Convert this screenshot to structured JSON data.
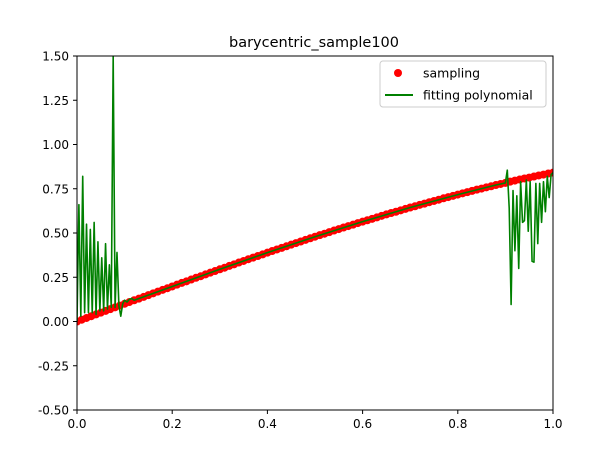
{
  "chart_data": {
    "type": "line",
    "title": "barycentric_sample100",
    "xlabel": "",
    "ylabel": "",
    "xlim": [
      0.0,
      1.0
    ],
    "ylim": [
      -0.5,
      1.5
    ],
    "x_ticks": [
      "0.0",
      "0.2",
      "0.4",
      "0.6",
      "0.8",
      "1.0"
    ],
    "y_ticks": [
      "-0.50",
      "-0.25",
      "0.00",
      "0.25",
      "0.50",
      "0.75",
      "1.00",
      "1.25",
      "1.50"
    ],
    "grid": false,
    "legend": {
      "placement": "top-right",
      "entries": [
        "sampling",
        "fitting polynomial"
      ]
    },
    "series": [
      {
        "name": "sampling",
        "style": "scatter",
        "color": "#ff0000",
        "x": [
          0.0,
          0.01,
          0.02,
          0.03,
          0.04,
          0.05,
          0.06,
          0.07,
          0.08,
          0.09,
          0.1,
          0.11,
          0.12,
          0.13,
          0.14,
          0.15,
          0.16,
          0.17,
          0.18,
          0.19,
          0.2,
          0.21,
          0.22,
          0.23,
          0.24,
          0.25,
          0.26,
          0.27,
          0.28,
          0.29,
          0.3,
          0.31,
          0.32,
          0.33,
          0.34,
          0.35,
          0.36,
          0.37,
          0.38,
          0.39,
          0.4,
          0.41,
          0.42,
          0.43,
          0.44,
          0.45,
          0.46,
          0.47,
          0.48,
          0.49,
          0.5,
          0.51,
          0.52,
          0.53,
          0.54,
          0.55,
          0.56,
          0.57,
          0.58,
          0.59,
          0.6,
          0.61,
          0.62,
          0.63,
          0.64,
          0.65,
          0.66,
          0.67,
          0.68,
          0.69,
          0.7,
          0.71,
          0.72,
          0.73,
          0.74,
          0.75,
          0.76,
          0.77,
          0.78,
          0.79,
          0.8,
          0.81,
          0.82,
          0.83,
          0.84,
          0.85,
          0.86,
          0.87,
          0.88,
          0.89,
          0.9,
          0.91,
          0.92,
          0.93,
          0.94,
          0.95,
          0.96,
          0.97,
          0.98,
          0.99,
          1.0
        ],
        "y": [
          0.0,
          0.01,
          0.02,
          0.03,
          0.04,
          0.05,
          0.06,
          0.07,
          0.08,
          0.09,
          0.1,
          0.11,
          0.12,
          0.129,
          0.139,
          0.149,
          0.159,
          0.169,
          0.179,
          0.188,
          0.198,
          0.208,
          0.218,
          0.227,
          0.237,
          0.247,
          0.256,
          0.266,
          0.276,
          0.285,
          0.295,
          0.304,
          0.314,
          0.323,
          0.333,
          0.342,
          0.352,
          0.361,
          0.37,
          0.379,
          0.389,
          0.398,
          0.407,
          0.416,
          0.425,
          0.434,
          0.443,
          0.452,
          0.461,
          0.47,
          0.479,
          0.488,
          0.496,
          0.505,
          0.514,
          0.522,
          0.531,
          0.539,
          0.547,
          0.556,
          0.564,
          0.572,
          0.58,
          0.588,
          0.597,
          0.605,
          0.613,
          0.62,
          0.628,
          0.636,
          0.644,
          0.651,
          0.659,
          0.666,
          0.674,
          0.681,
          0.688,
          0.696,
          0.703,
          0.71,
          0.717,
          0.724,
          0.731,
          0.738,
          0.745,
          0.751,
          0.758,
          0.764,
          0.771,
          0.777,
          0.783,
          0.79,
          0.796,
          0.802,
          0.808,
          0.813,
          0.819,
          0.825,
          0.83,
          0.836,
          0.841
        ]
      },
      {
        "name": "fitting polynomial",
        "style": "line",
        "color": "#008000",
        "x": [
          0.0,
          0.004,
          0.008,
          0.012,
          0.016,
          0.02,
          0.024,
          0.028,
          0.032,
          0.036,
          0.04,
          0.044,
          0.048,
          0.052,
          0.056,
          0.06,
          0.064,
          0.068,
          0.072,
          0.076,
          0.08,
          0.084,
          0.088,
          0.092,
          0.096,
          0.1,
          0.105,
          0.11,
          0.115,
          0.12,
          0.16,
          0.2,
          0.3,
          0.4,
          0.5,
          0.6,
          0.7,
          0.8,
          0.88,
          0.89,
          0.9,
          0.904,
          0.908,
          0.912,
          0.916,
          0.92,
          0.924,
          0.928,
          0.932,
          0.936,
          0.94,
          0.944,
          0.948,
          0.952,
          0.956,
          0.96,
          0.964,
          0.968,
          0.972,
          0.976,
          0.98,
          0.984,
          0.988,
          0.992,
          0.996,
          1.0
        ],
        "y": [
          0.0,
          0.66,
          0.03,
          0.82,
          0.05,
          0.55,
          0.05,
          0.52,
          0.05,
          0.56,
          0.04,
          0.45,
          0.06,
          0.36,
          0.06,
          0.44,
          0.07,
          0.32,
          0.08,
          1.5,
          0.08,
          0.39,
          0.09,
          0.03,
          0.1,
          0.12,
          0.11,
          0.125,
          0.13,
          0.12,
          0.159,
          0.198,
          0.295,
          0.389,
          0.479,
          0.564,
          0.644,
          0.717,
          0.771,
          0.777,
          0.783,
          0.855,
          0.64,
          0.096,
          0.74,
          0.4,
          0.71,
          0.3,
          0.79,
          0.56,
          0.57,
          0.8,
          0.51,
          0.79,
          0.34,
          0.335,
          0.78,
          0.44,
          0.78,
          0.56,
          0.79,
          0.62,
          0.82,
          0.7,
          0.83,
          0.841
        ]
      }
    ]
  }
}
